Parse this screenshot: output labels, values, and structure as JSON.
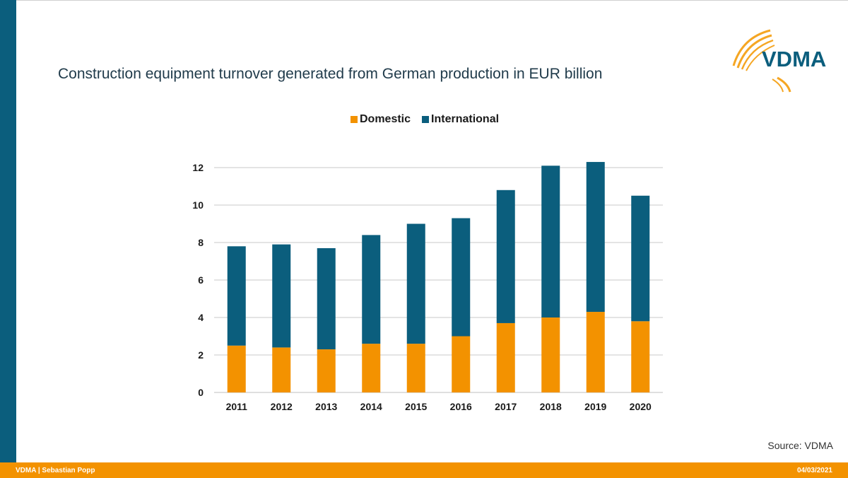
{
  "title": "Construction equipment turnover generated from German production in EUR billion",
  "logo": {
    "text": "VDMA",
    "icon": "vdma-arc-logo"
  },
  "source": "Source: VDMA",
  "footer": {
    "left": "VDMA | Sebastian Popp",
    "right": "04/03/2021"
  },
  "colors": {
    "domestic": "#f39200",
    "international": "#0b5e7d",
    "accent_bar": "#0b5e7d",
    "footer": "#f39200"
  },
  "chart_data": {
    "type": "bar",
    "stacked": true,
    "categories": [
      "2011",
      "2012",
      "2013",
      "2014",
      "2015",
      "2016",
      "2017",
      "2018",
      "2019",
      "2020"
    ],
    "series": [
      {
        "name": "Domestic",
        "values": [
          2.5,
          2.4,
          2.3,
          2.6,
          2.6,
          3.0,
          3.7,
          4.0,
          4.3,
          3.8
        ]
      },
      {
        "name": "International",
        "values": [
          5.3,
          5.5,
          5.4,
          5.8,
          6.4,
          6.3,
          7.1,
          8.1,
          8.0,
          6.7
        ]
      }
    ],
    "ylim": [
      0,
      12
    ],
    "yticks": [
      "0",
      "2",
      "4",
      "6",
      "8",
      "10",
      "12"
    ],
    "grid": true,
    "legend_position": "top"
  }
}
